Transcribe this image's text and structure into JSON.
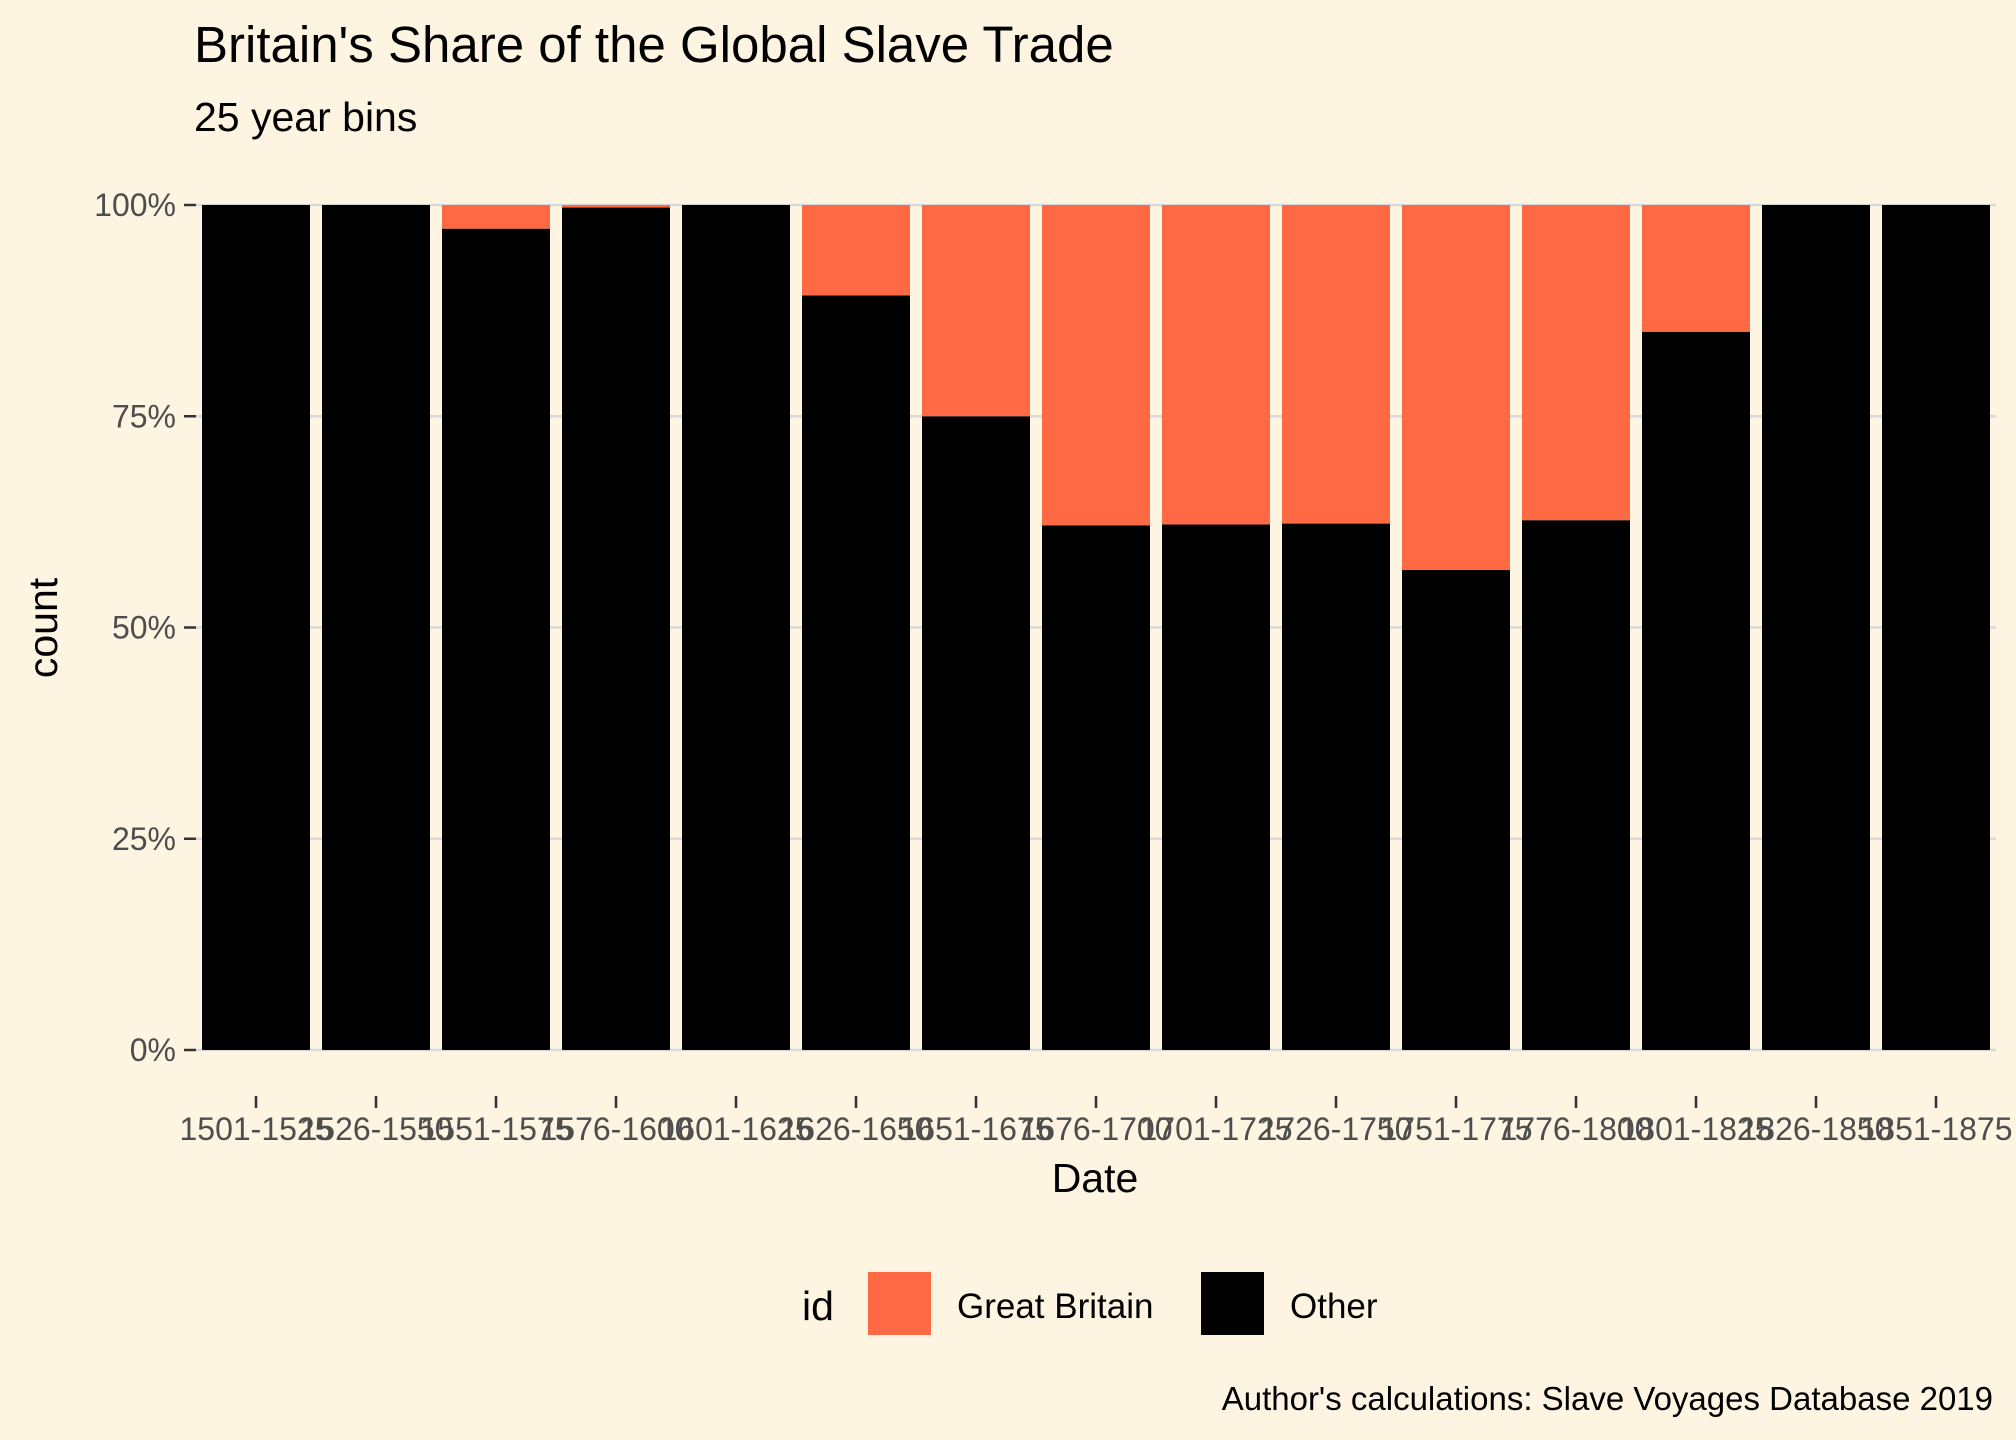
{
  "chart_data": {
    "type": "bar",
    "stacked": true,
    "title": "Britain's Share of the Global Slave Trade",
    "subtitle": "25 year bins",
    "xlabel": "Date",
    "ylabel": "count",
    "ylim": [
      0,
      1
    ],
    "yticks": [
      0,
      0.25,
      0.5,
      0.75,
      1
    ],
    "ytick_labels": [
      "0%",
      "25%",
      "50%",
      "75%",
      "100%"
    ],
    "categories": [
      "1501-1525",
      "1526-1550",
      "1551-1575",
      "1576-1600",
      "1601-1625",
      "1626-1650",
      "1651-1675",
      "1676-1700",
      "1701-1725",
      "1726-1750",
      "1751-1775",
      "1776-1800",
      "1801-1825",
      "1826-1850",
      "1851-1875"
    ],
    "series": [
      {
        "name": "Other",
        "color": "#000000",
        "values": [
          1.0,
          1.0,
          0.972,
          0.997,
          1.0,
          0.893,
          0.75,
          0.621,
          0.622,
          0.623,
          0.568,
          0.627,
          0.85,
          1.0,
          1.0
        ]
      },
      {
        "name": "Great Britain",
        "color": "#ff6a45",
        "values": [
          0.0,
          0.0,
          0.028,
          0.003,
          0.0,
          0.107,
          0.25,
          0.379,
          0.378,
          0.377,
          0.432,
          0.373,
          0.15,
          0.0,
          0.0
        ]
      }
    ],
    "legend": {
      "title": "id",
      "position": "bottom",
      "items": [
        {
          "label": "Great Britain",
          "color": "#ff6a45"
        },
        {
          "label": "Other",
          "color": "#000000"
        }
      ]
    },
    "caption": "Author's calculations: Slave Voyages Database 2019",
    "grid": true,
    "gridColor": "#d9d9d9"
  }
}
